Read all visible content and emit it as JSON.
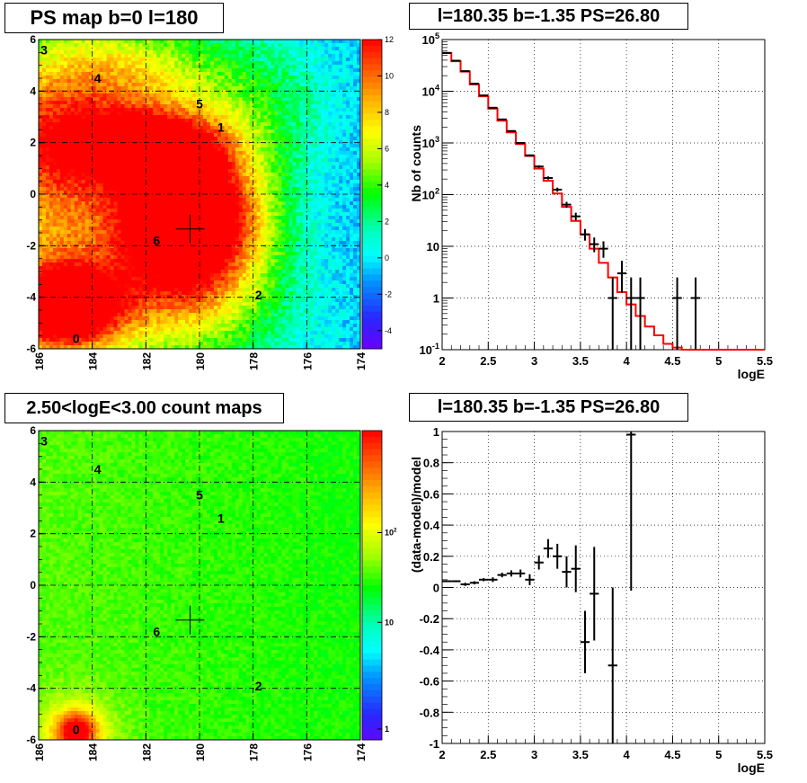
{
  "panels": {
    "top_left_title": "PS map b=0 l=180",
    "top_right_title": "l=180.35 b=-1.35 PS=26.80",
    "bottom_left_title": "2.50<logE<3.00 count maps",
    "bottom_right_title": "l=180.35 b=-1.35 PS=26.80"
  },
  "chart_data": [
    {
      "id": "ps-map",
      "type": "heatmap",
      "title": "PS map b=0 l=180",
      "x_ticks": [
        "186",
        "184",
        "182",
        "180",
        "178",
        "176",
        "174"
      ],
      "xlim": [
        186,
        174
      ],
      "y_ticks": [
        "6",
        "4",
        "2",
        "0",
        "-2",
        "-4",
        "-6"
      ],
      "ylim": [
        -6,
        6
      ],
      "colorbar_ticks": [
        "12",
        "10",
        "8",
        "6",
        "4",
        "2",
        "0",
        "-2",
        "-4"
      ],
      "colorbar_range": [
        -5,
        12
      ],
      "sources": [
        {
          "label": "0",
          "l": 184.6,
          "b": -5.6
        },
        {
          "label": "1",
          "l": 179.2,
          "b": 2.6
        },
        {
          "label": "2",
          "l": 177.8,
          "b": -3.9
        },
        {
          "label": "3",
          "l": 185.8,
          "b": 5.6
        },
        {
          "label": "4",
          "l": 183.8,
          "b": 4.5
        },
        {
          "label": "5",
          "l": 180.0,
          "b": 3.5
        },
        {
          "label": "6",
          "l": 181.6,
          "b": -1.8
        }
      ],
      "marker": {
        "l": 180.35,
        "b": -1.35
      },
      "blobs": [
        {
          "l": 180.5,
          "b": -1.0,
          "sl": 2.0,
          "sb": 2.0,
          "amp": 18
        },
        {
          "l": 181.8,
          "b": 1.8,
          "sl": 1.8,
          "sb": 0.9,
          "amp": 9
        },
        {
          "l": 185.0,
          "b": -4.4,
          "sl": 1.4,
          "sb": 1.1,
          "amp": 13
        },
        {
          "l": 184.5,
          "b": 2.5,
          "sl": 2.5,
          "sb": 1.5,
          "amp": 5
        },
        {
          "l": 185.5,
          "b": 0.0,
          "sl": 1.5,
          "sb": 3.0,
          "amp": 5
        },
        {
          "l": 183.0,
          "b": 4.8,
          "sl": 2.0,
          "sb": 1.2,
          "amp": 4
        },
        {
          "l": 181.0,
          "b": -4.5,
          "sl": 3.0,
          "sb": 1.5,
          "amp": 4
        },
        {
          "l": 178.5,
          "b": 3.5,
          "sl": 2.5,
          "sb": 1.8,
          "amp": 3
        }
      ]
    },
    {
      "id": "spectrum",
      "type": "line",
      "title": "l=180.35 b=-1.35 PS=26.80",
      "xlabel": "logE",
      "ylabel": "Nb of counts",
      "xlim": [
        2,
        5.5
      ],
      "x_ticks": [
        "2",
        "2.5",
        "3",
        "3.5",
        "4",
        "4.5",
        "5",
        "5.5"
      ],
      "ylim": [
        0.1,
        100000
      ],
      "y_scale": "log",
      "y_ticks": [
        "10^-1",
        "1",
        "10",
        "10^2",
        "10^3",
        "10^4",
        "10^5"
      ],
      "series": [
        {
          "kind": "model-step",
          "color": "#ff0000",
          "bin_edges": [
            2.0,
            2.1,
            2.2,
            2.3,
            2.4,
            2.5,
            2.6,
            2.7,
            2.8,
            2.9,
            3.0,
            3.1,
            3.2,
            3.3,
            3.4,
            3.5,
            3.6,
            3.7,
            3.8,
            3.9,
            4.0,
            4.1,
            4.2,
            4.3,
            4.4,
            4.5,
            4.6,
            4.7,
            4.8,
            4.9,
            5.0,
            5.5
          ],
          "values": [
            55000,
            38000,
            24000,
            13500,
            8000,
            4600,
            2700,
            1600,
            950,
            560,
            320,
            185,
            105,
            58,
            31,
            17,
            9,
            4.8,
            2.5,
            1.3,
            0.75,
            0.45,
            0.28,
            0.19,
            0.13,
            0.11,
            0.1,
            0.1,
            0.1,
            0.1,
            0.1
          ]
        },
        {
          "kind": "data-points",
          "color": "#000000",
          "x": [
            2.05,
            2.15,
            2.25,
            2.35,
            2.45,
            2.55,
            2.65,
            2.75,
            2.85,
            2.95,
            3.05,
            3.15,
            3.25,
            3.35,
            3.45,
            3.55,
            3.65,
            3.75,
            3.85,
            3.95,
            4.05,
            4.15,
            4.55,
            4.75
          ],
          "y": [
            55000,
            39000,
            24500,
            14000,
            8300,
            4800,
            2850,
            1700,
            1000,
            575,
            350,
            210,
            125,
            64,
            38,
            17,
            11,
            9,
            1,
            3,
            1,
            1,
            1,
            1
          ]
        }
      ]
    },
    {
      "id": "count-map",
      "type": "heatmap",
      "title": "2.50<logE<3.00 count maps",
      "x_ticks": [
        "186",
        "184",
        "182",
        "180",
        "178",
        "176",
        "174"
      ],
      "xlim": [
        186,
        174
      ],
      "y_ticks": [
        "6",
        "4",
        "2",
        "0",
        "-2",
        "-4",
        "-6"
      ],
      "ylim": [
        -6,
        6
      ],
      "colorbar_ticks": [
        "10^2",
        "10",
        "1"
      ],
      "colorbar_scale": "log",
      "sources": [
        {
          "label": "0",
          "l": 184.6,
          "b": -5.6
        },
        {
          "label": "1",
          "l": 179.2,
          "b": 2.6
        },
        {
          "label": "2",
          "l": 177.8,
          "b": -3.9
        },
        {
          "label": "3",
          "l": 185.8,
          "b": 5.6
        },
        {
          "label": "4",
          "l": 183.8,
          "b": 4.5
        },
        {
          "label": "5",
          "l": 180.0,
          "b": 3.5
        },
        {
          "label": "6",
          "l": 181.6,
          "b": -1.8
        }
      ],
      "marker": {
        "l": 180.35,
        "b": -1.35
      }
    },
    {
      "id": "residuals",
      "type": "scatter",
      "title": "l=180.35 b=-1.35 PS=26.80",
      "xlabel": "logE",
      "ylabel": "(data-model)/model",
      "xlim": [
        2,
        5.5
      ],
      "x_ticks": [
        "2",
        "2.5",
        "3",
        "3.5",
        "4",
        "4.5",
        "5",
        "5.5"
      ],
      "ylim": [
        -1,
        1
      ],
      "y_ticks": [
        "1",
        "0.8",
        "0.6",
        "0.4",
        "0.2",
        "0",
        "-0.2",
        "-0.4",
        "-0.6",
        "-0.8",
        "-1"
      ],
      "series": [
        {
          "kind": "data-points",
          "color": "#000000",
          "x": [
            2.05,
            2.15,
            2.25,
            2.35,
            2.45,
            2.55,
            2.65,
            2.75,
            2.85,
            2.95,
            3.05,
            3.15,
            3.25,
            3.35,
            3.45,
            3.55,
            3.65,
            3.85,
            4.05
          ],
          "y": [
            0.04,
            0.04,
            0.02,
            0.03,
            0.05,
            0.05,
            0.08,
            0.09,
            0.09,
            0.05,
            0.16,
            0.25,
            0.2,
            0.1,
            0.12,
            -0.35,
            -0.04,
            -0.5,
            0.98
          ],
          "err": [
            0.005,
            0.005,
            0.01,
            0.01,
            0.01,
            0.015,
            0.015,
            0.02,
            0.025,
            0.035,
            0.045,
            0.06,
            0.08,
            0.1,
            0.15,
            0.2,
            0.3,
            0.5,
            1.0
          ]
        }
      ]
    }
  ]
}
